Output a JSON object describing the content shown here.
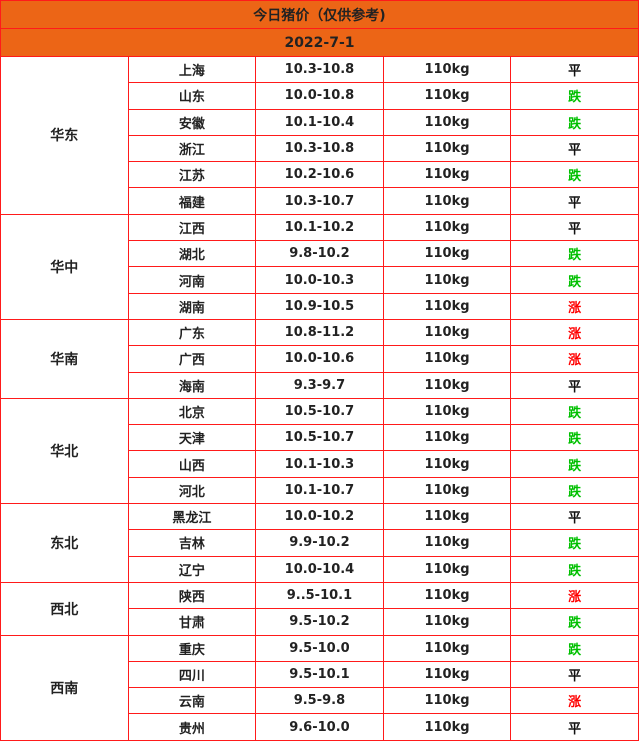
{
  "title": "今日猪价（仅供参考)",
  "date": "2022-7-1",
  "colors": {
    "header_bg": "#ec6516",
    "border": "#ff1a1a",
    "down": "#00c000",
    "up": "#ff0000",
    "flat": "#111111"
  },
  "regions": [
    {
      "name": "华东",
      "rows": [
        {
          "province": "上海",
          "price": "10.3-10.8",
          "weight": "110kg",
          "trend": "平"
        },
        {
          "province": "山东",
          "price": "10.0-10.8",
          "weight": "110kg",
          "trend": "跌"
        },
        {
          "province": "安徽",
          "price": "10.1-10.4",
          "weight": "110kg",
          "trend": "跌"
        },
        {
          "province": "浙江",
          "price": "10.3-10.8",
          "weight": "110kg",
          "trend": "平"
        },
        {
          "province": "江苏",
          "price": "10.2-10.6",
          "weight": "110kg",
          "trend": "跌"
        },
        {
          "province": "福建",
          "price": "10.3-10.7",
          "weight": "110kg",
          "trend": "平"
        }
      ]
    },
    {
      "name": "华中",
      "rows": [
        {
          "province": "江西",
          "price": "10.1-10.2",
          "weight": "110kg",
          "trend": "平"
        },
        {
          "province": "湖北",
          "price": "9.8-10.2",
          "weight": "110kg",
          "trend": "跌"
        },
        {
          "province": "河南",
          "price": "10.0-10.3",
          "weight": "110kg",
          "trend": "跌"
        },
        {
          "province": "湖南",
          "price": "10.9-10.5",
          "weight": "110kg",
          "trend": "涨"
        }
      ]
    },
    {
      "name": "华南",
      "rows": [
        {
          "province": "广东",
          "price": "10.8-11.2",
          "weight": "110kg",
          "trend": "涨"
        },
        {
          "province": "广西",
          "price": "10.0-10.6",
          "weight": "110kg",
          "trend": "涨"
        },
        {
          "province": "海南",
          "price": "9.3-9.7",
          "weight": "110kg",
          "trend": "平"
        }
      ]
    },
    {
      "name": "华北",
      "rows": [
        {
          "province": "北京",
          "price": "10.5-10.7",
          "weight": "110kg",
          "trend": "跌"
        },
        {
          "province": "天津",
          "price": "10.5-10.7",
          "weight": "110kg",
          "trend": "跌"
        },
        {
          "province": "山西",
          "price": "10.1-10.3",
          "weight": "110kg",
          "trend": "跌"
        },
        {
          "province": "河北",
          "price": "10.1-10.7",
          "weight": "110kg",
          "trend": "跌"
        }
      ]
    },
    {
      "name": "东北",
      "rows": [
        {
          "province": "黑龙江",
          "price": "10.0-10.2",
          "weight": "110kg",
          "trend": "平"
        },
        {
          "province": "吉林",
          "price": "9.9-10.2",
          "weight": "110kg",
          "trend": "跌"
        },
        {
          "province": "辽宁",
          "price": "10.0-10.4",
          "weight": "110kg",
          "trend": "跌"
        }
      ]
    },
    {
      "name": "西北",
      "rows": [
        {
          "province": "陕西",
          "price": "9..5-10.1",
          "weight": "110kg",
          "trend": "涨"
        },
        {
          "province": "甘肃",
          "price": "9.5-10.2",
          "weight": "110kg",
          "trend": "跌"
        }
      ]
    },
    {
      "name": "西南",
      "rows": [
        {
          "province": "重庆",
          "price": "9.5-10.0",
          "weight": "110kg",
          "trend": "跌"
        },
        {
          "province": "四川",
          "price": "9.5-10.1",
          "weight": "110kg",
          "trend": "平"
        },
        {
          "province": "云南",
          "price": "9.5-9.8",
          "weight": "110kg",
          "trend": "涨"
        },
        {
          "province": "贵州",
          "price": "9.6-10.0",
          "weight": "110kg",
          "trend": "平"
        }
      ]
    }
  ]
}
